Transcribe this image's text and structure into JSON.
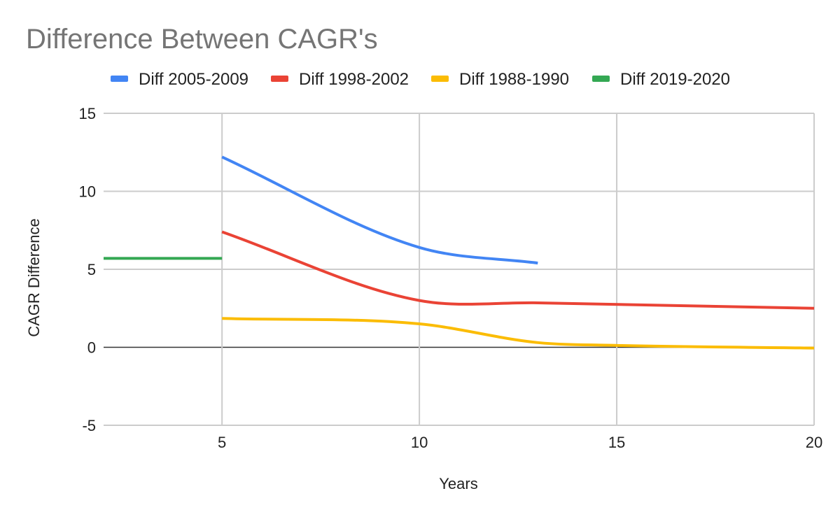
{
  "chart_data": {
    "type": "line",
    "title": "Difference Between CAGR's",
    "xlabel": "Years",
    "ylabel": "CAGR Difference",
    "xlim": [
      2,
      20
    ],
    "ylim": [
      -5,
      15
    ],
    "x_ticks": [
      5,
      10,
      15,
      20
    ],
    "y_ticks": [
      -5,
      0,
      5,
      10,
      15
    ],
    "grid": true,
    "legend_position": "top",
    "series": [
      {
        "name": "Diff 2005-2009",
        "color": "#4285f4",
        "x": [
          5,
          10,
          13
        ],
        "y": [
          12.2,
          6.4,
          5.4
        ]
      },
      {
        "name": "Diff 1998-2002",
        "color": "#ea4335",
        "x": [
          5,
          10,
          13,
          20
        ],
        "y": [
          7.4,
          3.0,
          2.85,
          2.5
        ]
      },
      {
        "name": "Diff 1988-1990",
        "color": "#fbbc04",
        "x": [
          5,
          10,
          13,
          15,
          20
        ],
        "y": [
          1.85,
          1.5,
          0.3,
          0.12,
          -0.05
        ]
      },
      {
        "name": "Diff 2019-2020",
        "color": "#34a853",
        "x": [
          2,
          5
        ],
        "y": [
          5.7,
          5.7
        ]
      }
    ]
  }
}
